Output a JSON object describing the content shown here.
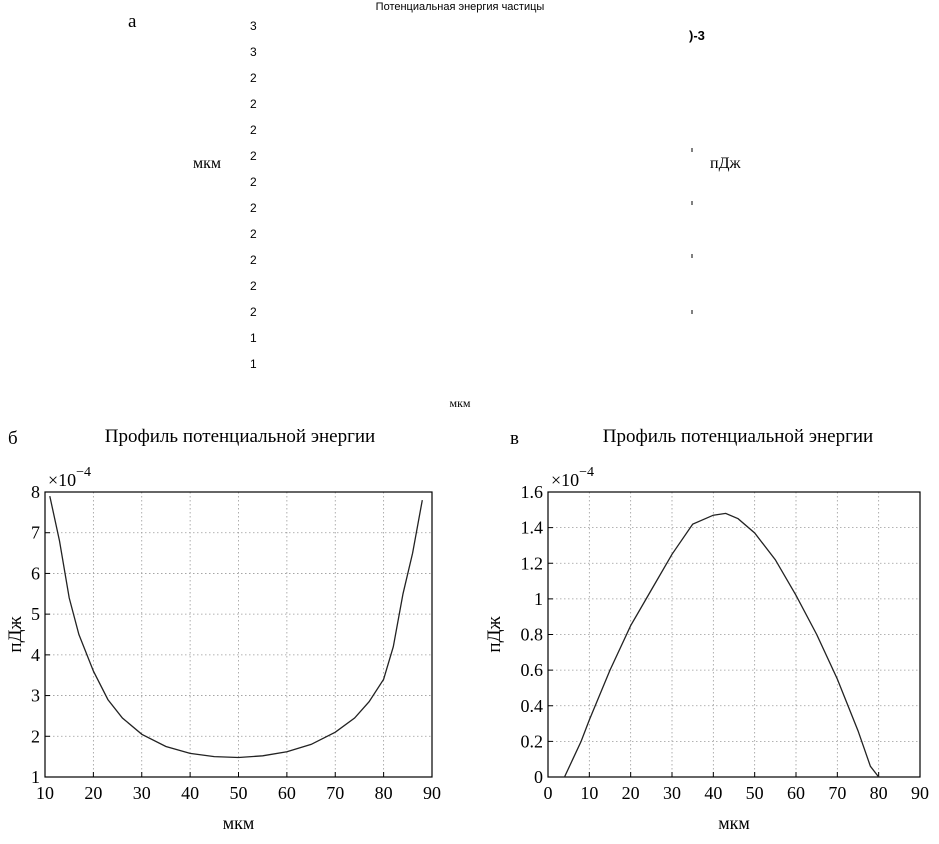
{
  "panel_a": {
    "letter": "а",
    "title_fragment": "Потенциальная энергия частицы",
    "colorbar_exponent": ")-3",
    "ylabel": "мкм",
    "xlabel": "мкм",
    "colorbar_label": "пДж",
    "ytick_fragments": [
      "3",
      "3",
      "2",
      "2",
      "2",
      "2",
      "2",
      "2",
      "2",
      "2",
      "2",
      "2",
      "1",
      "1"
    ]
  },
  "chart_data": [
    {
      "type": "line",
      "panel": "б",
      "title": "Профиль потенциальной энергии",
      "xlabel": "мкм",
      "ylabel": "пДж",
      "exponent_base": "×10",
      "exponent_power": "−4",
      "xlim": [
        10,
        90
      ],
      "ylim": [
        1,
        8
      ],
      "xticks": [
        10,
        20,
        30,
        40,
        50,
        60,
        70,
        80,
        90
      ],
      "yticks": [
        1,
        2,
        3,
        4,
        5,
        6,
        7,
        8
      ],
      "grid": true,
      "x": [
        11,
        13,
        15,
        17,
        20,
        23,
        26,
        30,
        35,
        40,
        45,
        50,
        55,
        60,
        65,
        70,
        74,
        77,
        80,
        82,
        84,
        86,
        88
      ],
      "y": [
        7.9,
        6.8,
        5.4,
        4.5,
        3.6,
        2.9,
        2.45,
        2.05,
        1.75,
        1.58,
        1.5,
        1.48,
        1.52,
        1.62,
        1.8,
        2.1,
        2.45,
        2.85,
        3.4,
        4.2,
        5.5,
        6.5,
        7.8
      ]
    },
    {
      "type": "line",
      "panel": "в",
      "title": "Профиль потенциальной энергии",
      "xlabel": "мкм",
      "ylabel": "пДж",
      "exponent_base": "×10",
      "exponent_power": "−4",
      "xlim": [
        0,
        90
      ],
      "ylim": [
        0,
        1.6
      ],
      "xticks": [
        0,
        10,
        20,
        30,
        40,
        50,
        60,
        70,
        80,
        90
      ],
      "yticks": [
        0,
        0.2,
        0.4,
        0.6,
        0.8,
        1,
        1.2,
        1.4,
        1.6
      ],
      "grid": true,
      "x": [
        4,
        6,
        8,
        10,
        15,
        20,
        25,
        30,
        35,
        40,
        43,
        46,
        50,
        55,
        60,
        65,
        70,
        75,
        78,
        80
      ],
      "y": [
        0,
        0.1,
        0.2,
        0.32,
        0.6,
        0.85,
        1.05,
        1.25,
        1.42,
        1.47,
        1.48,
        1.45,
        1.37,
        1.22,
        1.02,
        0.8,
        0.55,
        0.26,
        0.06,
        0
      ]
    }
  ]
}
